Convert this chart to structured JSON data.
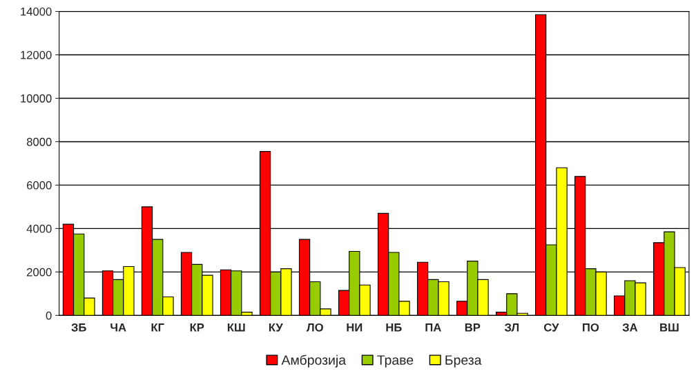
{
  "chart_data": {
    "type": "bar",
    "categories": [
      "ЗБ",
      "ЧА",
      "КГ",
      "КР",
      "КШ",
      "КУ",
      "ЛО",
      "НИ",
      "НБ",
      "ПА",
      "ВР",
      "ЗЛ",
      "СУ",
      "ПО",
      "ЗА",
      "ВШ"
    ],
    "series": [
      {
        "name": "Амброзија",
        "color": "#ff0000",
        "values": [
          4200,
          2050,
          5000,
          2900,
          2100,
          7550,
          3500,
          1150,
          4700,
          2450,
          650,
          150,
          13850,
          6400,
          900,
          3350
        ]
      },
      {
        "name": "Траве",
        "color": "#99cc00",
        "values": [
          3750,
          1650,
          3500,
          2350,
          2050,
          2000,
          1550,
          2950,
          2900,
          1650,
          2500,
          1000,
          3250,
          2150,
          1600,
          3850
        ]
      },
      {
        "name": "Бреза",
        "color": "#ffff00",
        "values": [
          800,
          2250,
          850,
          1850,
          150,
          2150,
          300,
          1400,
          650,
          1550,
          1650,
          100,
          6800,
          2000,
          1500,
          2200
        ]
      }
    ],
    "ylim": [
      0,
      14000
    ],
    "yticks": [
      0,
      2000,
      4000,
      6000,
      8000,
      10000,
      12000,
      14000
    ],
    "grid": "y",
    "legend": "bottom"
  }
}
